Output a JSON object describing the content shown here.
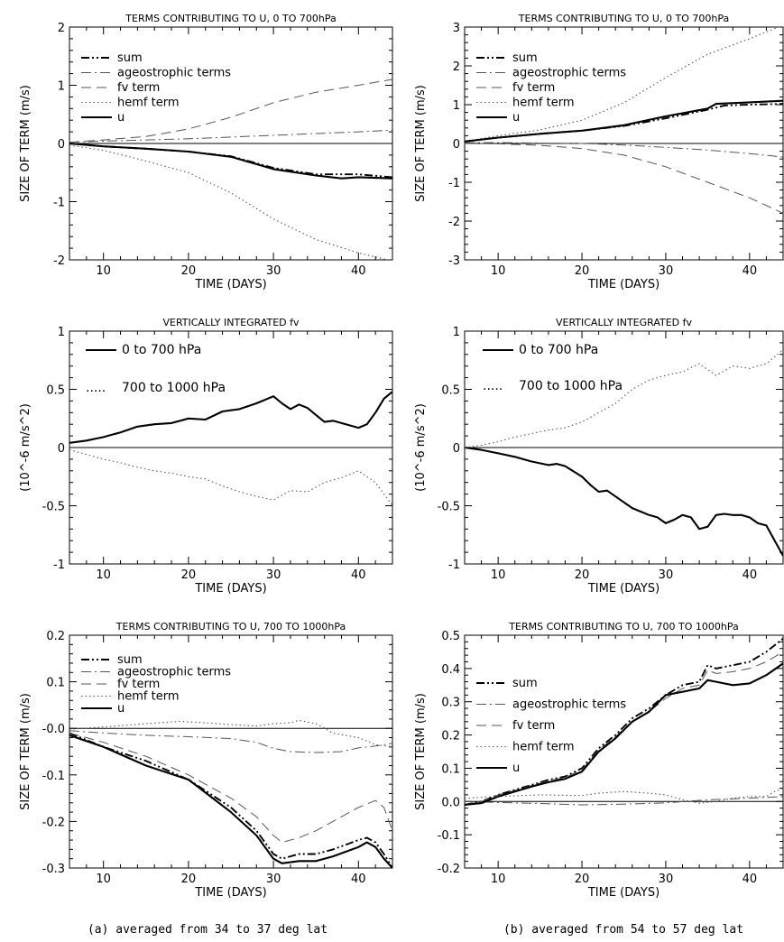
{
  "captions": {
    "left": "(a) averaged from 34 to 37 deg lat",
    "right": "(b) averaged from 54 to 57 deg lat"
  },
  "chart_data": [
    {
      "id": "a-top",
      "type": "line",
      "title": "TERMS CONTRIBUTING TO U, 0 TO 700hPa",
      "xlabel": "TIME (DAYS)",
      "ylabel": "SIZE OF TERM (m/s)",
      "xlim": [
        6,
        44
      ],
      "ylim": [
        -2,
        2
      ],
      "xticks": [
        10,
        20,
        30,
        40
      ],
      "yticks": [
        -2,
        -1,
        0,
        1,
        2
      ],
      "ytick_labels": [
        "-2",
        "-1",
        "0",
        "1",
        "2"
      ],
      "legend": "top-left",
      "series": [
        {
          "name": "sum",
          "style": "dashdotdot",
          "weight": "bold",
          "x": [
            6,
            10,
            15,
            20,
            25,
            30,
            35,
            40,
            44
          ],
          "y": [
            0.0,
            -0.05,
            -0.09,
            -0.14,
            -0.22,
            -0.42,
            -0.53,
            -0.53,
            -0.58
          ]
        },
        {
          "name": "ageostrophic terms",
          "style": "dashdot",
          "x": [
            6,
            10,
            15,
            20,
            25,
            30,
            35,
            40,
            44
          ],
          "y": [
            0.02,
            0.04,
            0.06,
            0.08,
            0.11,
            0.14,
            0.17,
            0.2,
            0.23
          ]
        },
        {
          "name": "fv term",
          "style": "dash",
          "x": [
            6,
            10,
            15,
            20,
            25,
            30,
            35,
            40,
            44
          ],
          "y": [
            0.02,
            0.06,
            0.12,
            0.25,
            0.45,
            0.7,
            0.88,
            1.0,
            1.1
          ]
        },
        {
          "name": "hemf term",
          "style": "dot",
          "x": [
            6,
            10,
            15,
            20,
            25,
            30,
            35,
            40,
            44
          ],
          "y": [
            -0.03,
            -0.12,
            -0.3,
            -0.5,
            -0.85,
            -1.3,
            -1.65,
            -1.88,
            -2.02
          ]
        },
        {
          "name": "u",
          "style": "solid",
          "weight": "bold",
          "x": [
            6,
            10,
            15,
            20,
            25,
            30,
            35,
            38,
            40,
            44
          ],
          "y": [
            0.0,
            -0.05,
            -0.09,
            -0.14,
            -0.23,
            -0.44,
            -0.55,
            -0.6,
            -0.58,
            -0.6
          ]
        }
      ]
    },
    {
      "id": "b-top",
      "type": "line",
      "title": "TERMS CONTRIBUTING TO U, 0 TO 700hPa",
      "xlabel": "TIME (DAYS)",
      "ylabel": "SIZE OF TERM (m/s)",
      "xlim": [
        6,
        44
      ],
      "ylim": [
        -3,
        3
      ],
      "xticks": [
        10,
        20,
        30,
        40
      ],
      "yticks": [
        -3,
        -2,
        -1,
        0,
        1,
        2,
        3
      ],
      "ytick_labels": [
        "-3",
        "-2",
        "-1",
        "0",
        "1",
        "2",
        "3"
      ],
      "legend": "top-left",
      "series": [
        {
          "name": "sum",
          "style": "dashdotdot",
          "weight": "bold",
          "x": [
            6,
            10,
            15,
            20,
            25,
            30,
            35,
            37,
            40,
            44
          ],
          "y": [
            0.05,
            0.15,
            0.25,
            0.33,
            0.45,
            0.65,
            0.87,
            0.98,
            1.0,
            1.02
          ]
        },
        {
          "name": "ageostrophic terms",
          "style": "dashdot",
          "x": [
            6,
            10,
            15,
            20,
            25,
            30,
            35,
            40,
            44
          ],
          "y": [
            0.02,
            0.02,
            0.01,
            0.0,
            -0.04,
            -0.1,
            -0.17,
            -0.26,
            -0.35
          ]
        },
        {
          "name": "fv term",
          "style": "dash",
          "x": [
            6,
            10,
            15,
            20,
            25,
            30,
            35,
            40,
            44
          ],
          "y": [
            0.0,
            -0.01,
            -0.05,
            -0.13,
            -0.3,
            -0.6,
            -1.0,
            -1.4,
            -1.8
          ]
        },
        {
          "name": "hemf term",
          "style": "dot",
          "x": [
            6,
            10,
            15,
            20,
            25,
            30,
            35,
            40,
            44
          ],
          "y": [
            0.05,
            0.2,
            0.35,
            0.6,
            1.05,
            1.7,
            2.3,
            2.7,
            3.05
          ]
        },
        {
          "name": "u",
          "style": "solid",
          "weight": "bold",
          "x": [
            6,
            10,
            15,
            20,
            25,
            30,
            35,
            36,
            40,
            44
          ],
          "y": [
            0.05,
            0.15,
            0.25,
            0.33,
            0.47,
            0.7,
            0.9,
            1.02,
            1.06,
            1.1
          ]
        }
      ]
    },
    {
      "id": "a-mid",
      "type": "line",
      "title": "VERTICALLY INTEGRATED fv",
      "xlabel": "TIME (DAYS)",
      "ylabel": "(10^-6 m/s^2)",
      "xlim": [
        6,
        44
      ],
      "ylim": [
        -1,
        1
      ],
      "xticks": [
        10,
        20,
        30,
        40
      ],
      "yticks": [
        -1,
        -0.5,
        0,
        0.5,
        1
      ],
      "ytick_labels": [
        "-1",
        "-0.5",
        "0",
        "0.5",
        "1"
      ],
      "legend": "top-left",
      "legend_style": "inline-prefix",
      "series": [
        {
          "name": "0 to 700 hPa",
          "style": "solid",
          "weight": "bold",
          "x": [
            6,
            8,
            10,
            12,
            14,
            16,
            18,
            20,
            22,
            24,
            26,
            28,
            30,
            31,
            32,
            33,
            34,
            35,
            36,
            37,
            38,
            39,
            40,
            41,
            42,
            43,
            44
          ],
          "y": [
            0.04,
            0.06,
            0.09,
            0.13,
            0.18,
            0.2,
            0.21,
            0.25,
            0.24,
            0.31,
            0.33,
            0.38,
            0.44,
            0.38,
            0.33,
            0.37,
            0.34,
            0.28,
            0.22,
            0.23,
            0.21,
            0.19,
            0.17,
            0.2,
            0.3,
            0.42,
            0.48
          ]
        },
        {
          "name": "700 to 1000 hPa",
          "style": "dot",
          "x": [
            6,
            8,
            10,
            12,
            14,
            16,
            18,
            20,
            22,
            24,
            26,
            28,
            30,
            32,
            34,
            36,
            38,
            40,
            42,
            44
          ],
          "y": [
            -0.02,
            -0.06,
            -0.1,
            -0.13,
            -0.17,
            -0.2,
            -0.22,
            -0.25,
            -0.27,
            -0.33,
            -0.38,
            -0.42,
            -0.45,
            -0.37,
            -0.38,
            -0.3,
            -0.26,
            -0.2,
            -0.3,
            -0.5
          ]
        }
      ]
    },
    {
      "id": "b-mid",
      "type": "line",
      "title": "VERTICALLY INTEGRATED fv",
      "xlabel": "TIME (DAYS)",
      "ylabel": "(10^-6 m/s^2)",
      "xlim": [
        6,
        44
      ],
      "ylim": [
        -1,
        1
      ],
      "xticks": [
        10,
        20,
        30,
        40
      ],
      "yticks": [
        -1,
        -0.5,
        0,
        0.5,
        1
      ],
      "ytick_labels": [
        "-1",
        "-0.5",
        "0",
        "0.5",
        "1"
      ],
      "legend": "top-left",
      "legend_style": "inline-prefix",
      "series": [
        {
          "name": "0 to 700 hPa",
          "style": "solid",
          "weight": "bold",
          "x": [
            6,
            8,
            10,
            12,
            14,
            16,
            17,
            18,
            20,
            21,
            22,
            23,
            24,
            26,
            28,
            29,
            30,
            31,
            32,
            33,
            34,
            35,
            36,
            37,
            38,
            39,
            40,
            41,
            42,
            43,
            44
          ],
          "y": [
            0.0,
            -0.02,
            -0.05,
            -0.08,
            -0.12,
            -0.15,
            -0.14,
            -0.16,
            -0.25,
            -0.32,
            -0.38,
            -0.37,
            -0.42,
            -0.52,
            -0.58,
            -0.6,
            -0.65,
            -0.62,
            -0.58,
            -0.6,
            -0.7,
            -0.68,
            -0.58,
            -0.57,
            -0.58,
            -0.58,
            -0.6,
            -0.65,
            -0.67,
            -0.8,
            -0.93
          ]
        },
        {
          "name": "700 to 1000 hPa",
          "style": "dot",
          "x": [
            6,
            8,
            10,
            12,
            14,
            16,
            18,
            20,
            22,
            24,
            26,
            28,
            30,
            32,
            34,
            36,
            38,
            40,
            42,
            44
          ],
          "y": [
            0.0,
            0.02,
            0.05,
            0.09,
            0.12,
            0.15,
            0.17,
            0.22,
            0.3,
            0.38,
            0.5,
            0.58,
            0.62,
            0.65,
            0.72,
            0.62,
            0.7,
            0.68,
            0.72,
            0.84
          ]
        }
      ]
    },
    {
      "id": "a-bot",
      "type": "line",
      "title": "TERMS CONTRIBUTING TO U, 700 TO 1000hPa",
      "xlabel": "TIME (DAYS)",
      "ylabel": "SIZE OF TERM (m/s)",
      "xlim": [
        6,
        44
      ],
      "ylim": [
        -0.3,
        0.2
      ],
      "xticks": [
        10,
        20,
        30,
        40
      ],
      "yticks": [
        -0.3,
        -0.2,
        -0.1,
        0,
        0.1,
        0.2
      ],
      "ytick_labels": [
        "-0.3",
        "-0.2",
        "-0.1",
        "-0.0",
        "0.1",
        "0.2"
      ],
      "legend": "top-left",
      "series": [
        {
          "name": "sum",
          "style": "dashdotdot",
          "weight": "bold",
          "x": [
            6,
            10,
            15,
            20,
            25,
            28,
            30,
            31,
            33,
            35,
            37,
            40,
            41,
            42,
            43,
            44
          ],
          "y": [
            -0.01,
            -0.04,
            -0.07,
            -0.11,
            -0.17,
            -0.22,
            -0.27,
            -0.28,
            -0.27,
            -0.27,
            -0.26,
            -0.24,
            -0.235,
            -0.245,
            -0.27,
            -0.3
          ]
        },
        {
          "name": "ageostrophic terms",
          "style": "dashdot",
          "x": [
            6,
            10,
            15,
            20,
            25,
            28,
            30,
            32,
            35,
            38,
            40,
            42,
            44
          ],
          "y": [
            -0.005,
            -0.01,
            -0.015,
            -0.018,
            -0.022,
            -0.03,
            -0.043,
            -0.05,
            -0.052,
            -0.05,
            -0.042,
            -0.038,
            -0.032
          ]
        },
        {
          "name": "fv term",
          "style": "dash",
          "x": [
            6,
            10,
            15,
            20,
            25,
            28,
            30,
            31,
            33,
            35,
            38,
            40,
            42,
            43,
            44
          ],
          "y": [
            -0.01,
            -0.03,
            -0.06,
            -0.1,
            -0.15,
            -0.19,
            -0.23,
            -0.245,
            -0.235,
            -0.22,
            -0.19,
            -0.17,
            -0.155,
            -0.17,
            -0.22
          ]
        },
        {
          "name": "hemf term",
          "style": "dot",
          "x": [
            6,
            10,
            15,
            19,
            22,
            25,
            28,
            30,
            32,
            33,
            35,
            37,
            40,
            42,
            44
          ],
          "y": [
            -0.002,
            0.003,
            0.01,
            0.015,
            0.012,
            0.008,
            0.005,
            0.01,
            0.012,
            0.017,
            0.01,
            -0.01,
            -0.02,
            -0.035,
            -0.04
          ]
        },
        {
          "name": "u",
          "style": "solid",
          "weight": "bold",
          "x": [
            6,
            10,
            15,
            20,
            25,
            28,
            30,
            31,
            33,
            35,
            37,
            40,
            41,
            42,
            43,
            44
          ],
          "y": [
            -0.015,
            -0.04,
            -0.08,
            -0.11,
            -0.18,
            -0.23,
            -0.28,
            -0.29,
            -0.285,
            -0.285,
            -0.275,
            -0.255,
            -0.245,
            -0.255,
            -0.28,
            -0.3
          ]
        }
      ]
    },
    {
      "id": "b-bot",
      "type": "line",
      "title": "TERMS CONTRIBUTING TO U, 700 TO 1000hPa",
      "xlabel": "TIME (DAYS)",
      "ylabel": "SIZE OF TERM (m/s)",
      "xlim": [
        6,
        44
      ],
      "ylim": [
        -0.2,
        0.5
      ],
      "xticks": [
        10,
        20,
        30,
        40
      ],
      "yticks": [
        -0.2,
        -0.1,
        0,
        0.1,
        0.2,
        0.3,
        0.4,
        0.5
      ],
      "ytick_labels": [
        "-0.2",
        "-0.1",
        "0.0",
        "0.1",
        "0.2",
        "0.3",
        "0.4",
        "0.5"
      ],
      "legend": "top-left",
      "series": [
        {
          "name": "sum",
          "style": "dashdotdot",
          "weight": "bold",
          "x": [
            6,
            8,
            10,
            12,
            14,
            16,
            18,
            20,
            22,
            24,
            26,
            28,
            30,
            32,
            34,
            35,
            36,
            38,
            40,
            42,
            44
          ],
          "y": [
            -0.01,
            0.0,
            0.02,
            0.035,
            0.05,
            0.065,
            0.075,
            0.1,
            0.16,
            0.2,
            0.25,
            0.28,
            0.32,
            0.35,
            0.36,
            0.41,
            0.4,
            0.41,
            0.42,
            0.45,
            0.49
          ]
        },
        {
          "name": "ageostrophic terms",
          "style": "dashdot",
          "x": [
            6,
            10,
            15,
            20,
            25,
            30,
            35,
            40,
            44
          ],
          "y": [
            0.0,
            -0.003,
            -0.006,
            -0.01,
            -0.008,
            -0.004,
            0.005,
            0.01,
            0.015
          ]
        },
        {
          "name": "fv term",
          "style": "dash",
          "x": [
            6,
            8,
            10,
            12,
            14,
            16,
            18,
            20,
            22,
            24,
            26,
            28,
            30,
            32,
            34,
            35,
            36,
            38,
            40,
            42,
            44
          ],
          "y": [
            -0.01,
            0.0,
            0.02,
            0.033,
            0.048,
            0.062,
            0.072,
            0.096,
            0.155,
            0.195,
            0.24,
            0.27,
            0.31,
            0.34,
            0.35,
            0.395,
            0.385,
            0.39,
            0.4,
            0.42,
            0.45
          ]
        },
        {
          "name": "hemf term",
          "style": "dot",
          "x": [
            6,
            10,
            15,
            20,
            22,
            25,
            28,
            30,
            32,
            34,
            36,
            38,
            40,
            42,
            43,
            44
          ],
          "y": [
            0.01,
            0.015,
            0.02,
            0.018,
            0.025,
            0.03,
            0.025,
            0.02,
            0.005,
            -0.005,
            0.0,
            0.01,
            0.015,
            0.015,
            0.03,
            0.04
          ]
        },
        {
          "name": "u",
          "style": "solid",
          "weight": "bold",
          "x": [
            6,
            8,
            10,
            12,
            14,
            16,
            18,
            20,
            22,
            24,
            26,
            28,
            30,
            32,
            34,
            35,
            36,
            38,
            40,
            42,
            44
          ],
          "y": [
            -0.01,
            -0.005,
            0.015,
            0.03,
            0.045,
            0.058,
            0.068,
            0.09,
            0.15,
            0.19,
            0.24,
            0.27,
            0.32,
            0.33,
            0.34,
            0.365,
            0.36,
            0.35,
            0.355,
            0.38,
            0.415
          ]
        }
      ]
    }
  ]
}
